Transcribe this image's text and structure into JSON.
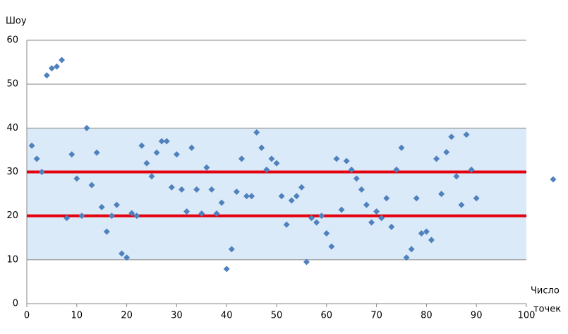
{
  "chart_data": {
    "type": "scatter",
    "x_label": "Число точек",
    "y_label": "Шоу",
    "x": [
      1,
      2,
      3,
      4,
      5,
      6,
      7,
      8,
      9,
      10,
      11,
      12,
      13,
      14,
      15,
      16,
      17,
      18,
      19,
      20,
      21,
      22,
      23,
      24,
      25,
      26,
      27,
      28,
      29,
      30,
      31,
      32,
      33,
      34,
      35,
      36,
      37,
      38,
      39,
      40,
      41,
      42,
      43,
      44,
      45,
      46,
      47,
      48,
      49,
      50,
      51,
      52,
      53,
      54,
      55,
      56,
      57,
      58,
      59,
      60,
      61,
      62,
      63,
      64,
      65,
      66,
      67,
      68,
      69,
      70,
      71,
      72,
      73,
      74,
      75,
      76,
      77,
      78,
      79,
      80,
      81,
      82,
      83,
      84,
      85,
      86,
      87,
      88,
      89,
      90
    ],
    "values": [
      36,
      33,
      30,
      52,
      53.6,
      54,
      55.5,
      19.5,
      34,
      28.5,
      20,
      40,
      27,
      34.4,
      22,
      16.4,
      20,
      22.5,
      11.4,
      10.5,
      20.6,
      20,
      36,
      32,
      29,
      34.4,
      37,
      37,
      26.5,
      34,
      26,
      21,
      35.5,
      26,
      20.5,
      31,
      26,
      20.5,
      23,
      7.9,
      12.4,
      25.5,
      33,
      24.5,
      24.5,
      39,
      35.5,
      30.5,
      33,
      32,
      24.5,
      18,
      23.5,
      24.5,
      26.5,
      9.5,
      19.5,
      18.5,
      20,
      16,
      13,
      33,
      21.4,
      32.5,
      30.5,
      28.5,
      26,
      22.5,
      18.5,
      21,
      19.5,
      24,
      17.5,
      30.5,
      35.5,
      10.5,
      12.4,
      24,
      16,
      16.4,
      14.5,
      33,
      25,
      34.5,
      38,
      29,
      22.5,
      38.5,
      30.5,
      24
    ],
    "color": "#4f81bd",
    "band": [
      10,
      40
    ],
    "band_color": "#dbeaf9",
    "ref_lines": [
      20,
      30
    ],
    "ref_color": "#e3000f",
    "xlim": [
      0,
      100
    ],
    "xticks": [
      0,
      10,
      20,
      30,
      40,
      50,
      60,
      70,
      80,
      90,
      100
    ],
    "ylim": [
      0,
      60
    ],
    "yticks": [
      0,
      10,
      20,
      30,
      40,
      50,
      60
    ],
    "grid": true
  }
}
